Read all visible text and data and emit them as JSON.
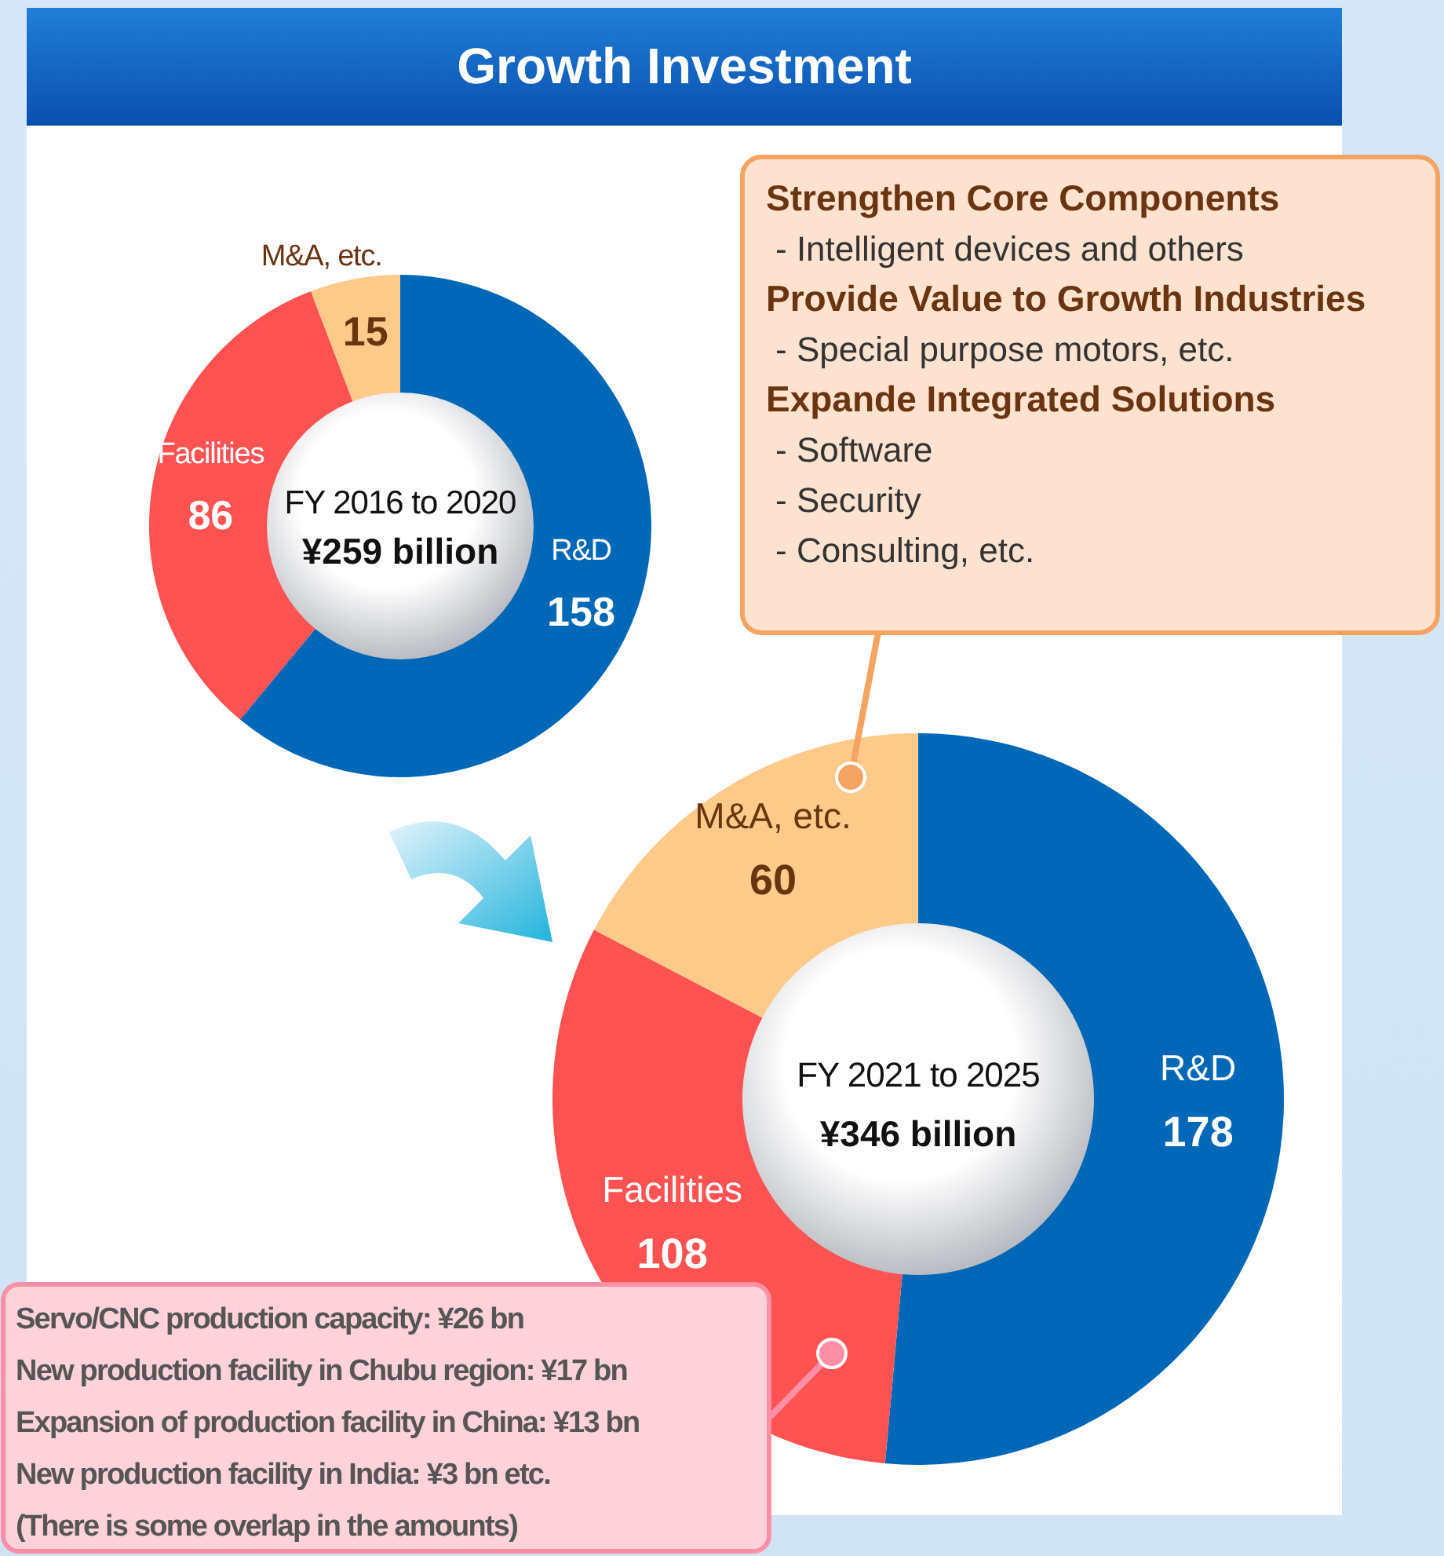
{
  "chart_data": [
    {
      "type": "donut",
      "title": "Growth Investment",
      "categories": [
        "R&D",
        "Facilities",
        "M&A, etc."
      ],
      "values": [
        158,
        86,
        15
      ],
      "colors": [
        "#0068b7",
        "#ff5252",
        "#fdca8a"
      ],
      "data_labels": true,
      "annotations": [
        "FY 2016 to 2020",
        "¥259 billion"
      ]
    },
    {
      "type": "donut",
      "categories": [
        "R&D",
        "Facilities",
        "M&A, etc."
      ],
      "values": [
        178,
        108,
        60
      ],
      "colors": [
        "#0068b7",
        "#ff5252",
        "#fdca8a"
      ],
      "data_labels": true,
      "annotations": [
        "FY 2021 to 2025",
        "¥346 billion",
        "Strengthen Core Components",
        "- Intelligent devices and others",
        "Provide Value to Growth Industries",
        "- Special purpose motors, etc.",
        "Expande Integrated Solutions",
        "- Software",
        "- Security",
        "- Consulting, etc.",
        "Servo/CNC production capacity: ¥26 bn",
        "New production facility in Chubu region: ¥17 bn",
        "Expansion of production facility in China: ¥13 bn",
        "New production facility in India: ¥3 bn etc.",
        "(There is some overlap in the amounts)"
      ]
    }
  ]
}
